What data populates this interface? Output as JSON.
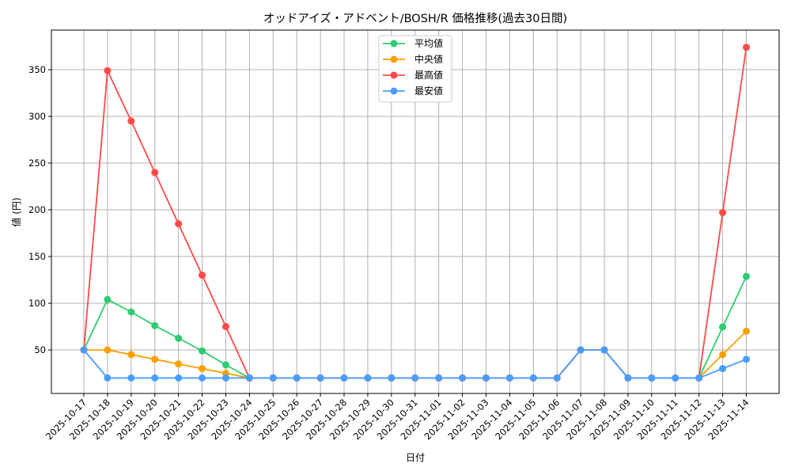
{
  "chart_data": {
    "type": "line",
    "title": "オッドアイズ・アドベント/BOSH/R 価格推移(過去30日間)",
    "xlabel": "日付",
    "ylabel": "値 (円)",
    "x": [
      "2025-10-17",
      "2025-10-18",
      "2025-10-19",
      "2025-10-20",
      "2025-10-21",
      "2025-10-22",
      "2025-10-23",
      "2025-10-24",
      "2025-10-25",
      "2025-10-26",
      "2025-10-27",
      "2025-10-28",
      "2025-10-29",
      "2025-10-30",
      "2025-10-31",
      "2025-11-01",
      "2025-11-02",
      "2025-11-03",
      "2025-11-04",
      "2025-11-05",
      "2025-11-06",
      "2025-11-07",
      "2025-11-08",
      "2025-11-09",
      "2025-11-10",
      "2025-11-11",
      "2025-11-12",
      "2025-11-13",
      "2025-11-14"
    ],
    "ylim": [
      3.4,
      392.4
    ],
    "yticks": [
      50,
      100,
      150,
      200,
      250,
      300,
      350
    ],
    "grid": true,
    "legend_position": "top-center",
    "series": [
      {
        "name": "平均値",
        "color": "#2ecc71",
        "values": [
          50,
          104,
          90.6,
          76,
          62.5,
          49,
          34,
          20,
          20,
          20,
          20,
          20,
          20,
          20,
          20,
          20,
          20,
          20,
          20,
          20,
          20,
          50,
          50,
          20,
          20,
          20,
          20,
          74.5,
          128.7
        ]
      },
      {
        "name": "中央値",
        "color": "#f5a100",
        "values": [
          50,
          50,
          45,
          40,
          35,
          30,
          25,
          20,
          20,
          20,
          20,
          20,
          20,
          20,
          20,
          20,
          20,
          20,
          20,
          20,
          20,
          50,
          50,
          20,
          20,
          20,
          20,
          45,
          70
        ]
      },
      {
        "name": "最高値",
        "color": "#ff4a4a",
        "values": [
          50,
          349,
          295,
          240,
          185,
          130,
          75,
          20,
          20,
          20,
          20,
          20,
          20,
          20,
          20,
          20,
          20,
          20,
          20,
          20,
          20,
          50,
          50,
          20,
          20,
          20,
          20,
          197,
          374
        ]
      },
      {
        "name": "最安値",
        "color": "#4a9dff",
        "values": [
          50,
          20,
          20,
          20,
          20,
          20,
          20,
          20,
          20,
          20,
          20,
          20,
          20,
          20,
          20,
          20,
          20,
          20,
          20,
          20,
          20,
          50,
          50,
          20,
          20,
          20,
          20,
          30,
          40
        ]
      }
    ]
  }
}
